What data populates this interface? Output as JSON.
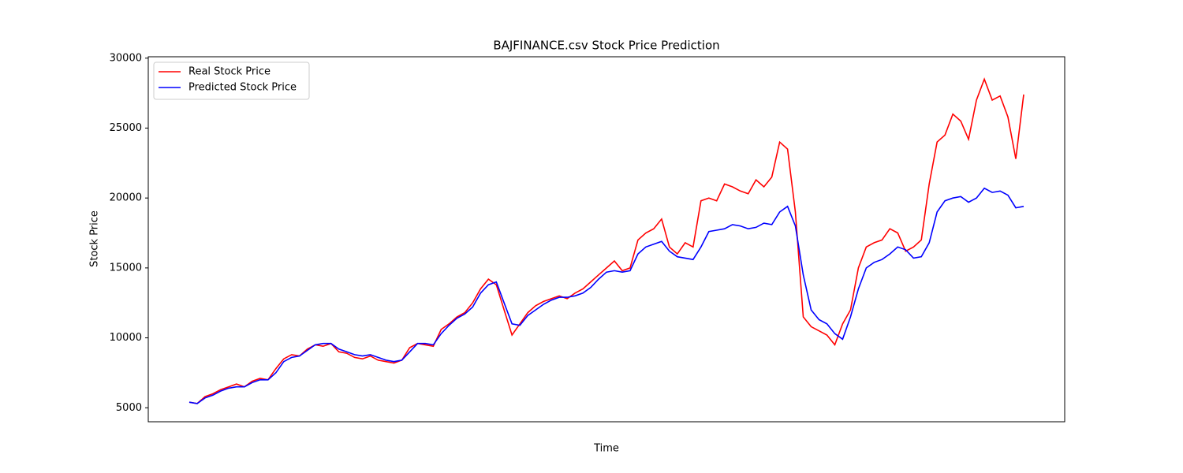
{
  "chart_data": {
    "type": "line",
    "title": "BAJFINANCE.csv Stock Price Prediction",
    "x_label": "Time",
    "y_label": "Stock Price",
    "legend": "upper left",
    "ylim": [
      4000,
      30100
    ],
    "yticks": [
      5000,
      10000,
      15000,
      20000,
      25000,
      30000
    ],
    "categories": [
      null,
      null,
      null,
      null,
      null,
      null,
      null,
      null,
      null,
      null,
      null,
      null,
      null,
      null,
      null,
      null,
      null,
      null,
      null,
      null,
      null,
      null,
      null,
      null,
      null,
      null,
      null,
      null,
      null,
      null,
      null,
      null,
      null,
      null,
      null,
      null,
      null,
      null,
      null,
      null,
      null,
      null,
      null,
      null,
      null,
      null,
      null,
      null,
      null,
      null,
      null,
      null,
      null,
      null,
      null,
      null,
      null,
      null,
      null,
      null,
      null,
      null,
      null,
      null,
      null,
      null,
      null,
      null,
      null,
      null,
      null,
      null,
      null,
      null,
      null,
      null,
      null,
      null,
      null,
      null,
      null,
      null,
      null,
      null,
      null,
      null,
      null,
      null,
      null,
      null,
      null,
      null,
      null,
      null,
      null,
      null,
      null,
      null,
      null,
      null,
      null,
      null,
      null,
      null,
      null,
      null,
      null
    ],
    "series": [
      {
        "name": "Real Stock Price",
        "color": "#ff0000",
        "values": [
          5400,
          5300,
          5800,
          6000,
          6300,
          6500,
          6700,
          6500,
          6900,
          7100,
          7000,
          7800,
          8500,
          8800,
          8700,
          9200,
          9500,
          9400,
          9600,
          9000,
          8900,
          8600,
          8500,
          8700,
          8400,
          8300,
          8200,
          8400,
          9300,
          9600,
          9500,
          9400,
          10600,
          11000,
          11500,
          11800,
          12500,
          13500,
          14200,
          13800,
          12000,
          10200,
          11000,
          11800,
          12300,
          12600,
          12800,
          13000,
          12800,
          13200,
          13500,
          14000,
          14500,
          15000,
          15500,
          14800,
          15000,
          17000,
          17500,
          17800,
          18500,
          16500,
          16000,
          16800,
          16500,
          19800,
          20000,
          19800,
          21000,
          20800,
          20500,
          20300,
          21300,
          20800,
          21500,
          24000,
          23500,
          19000,
          11500,
          10800,
          10500,
          10200,
          9500,
          11000,
          12000,
          15000,
          16500,
          16800,
          17000,
          17800,
          17500,
          16200,
          16500,
          17000,
          21000,
          24000,
          24500,
          26000,
          25500,
          24200,
          27000,
          28500,
          27000,
          27300,
          25800,
          22800,
          27400
        ]
      },
      {
        "name": "Predicted Stock Price",
        "color": "#0000ff",
        "values": [
          5400,
          5300,
          5700,
          5900,
          6200,
          6400,
          6500,
          6500,
          6800,
          7000,
          7000,
          7500,
          8300,
          8600,
          8700,
          9100,
          9500,
          9600,
          9600,
          9200,
          9000,
          8800,
          8700,
          8800,
          8600,
          8400,
          8300,
          8400,
          9000,
          9600,
          9600,
          9500,
          10300,
          10900,
          11400,
          11700,
          12200,
          13200,
          13800,
          14000,
          12500,
          11000,
          10900,
          11600,
          12000,
          12400,
          12700,
          12900,
          12900,
          13000,
          13200,
          13600,
          14200,
          14700,
          14800,
          14700,
          14800,
          16000,
          16500,
          16700,
          16900,
          16200,
          15800,
          15700,
          15600,
          16500,
          17600,
          17700,
          17800,
          18100,
          18000,
          17800,
          17900,
          18200,
          18100,
          19000,
          19400,
          18000,
          14500,
          12000,
          11300,
          11000,
          10300,
          9900,
          11500,
          13500,
          15000,
          15400,
          15600,
          16000,
          16500,
          16300,
          15700,
          15800,
          16800,
          19000,
          19800,
          20000,
          20100,
          19700,
          20000,
          20700,
          20400,
          20500,
          20200,
          19300,
          19400
        ]
      }
    ]
  }
}
